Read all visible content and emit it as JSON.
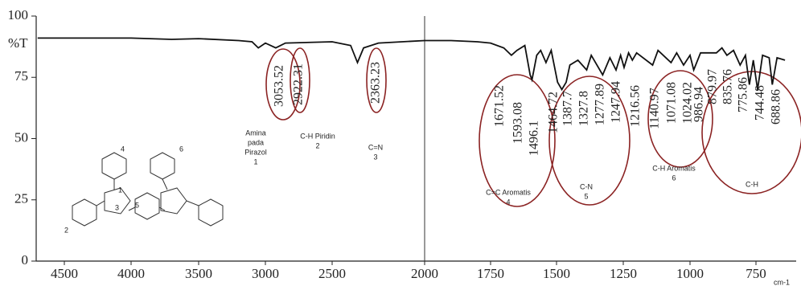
{
  "chart_data": {
    "type": "line",
    "y_label": "%T",
    "x_label": "cm-1",
    "color": "#111111",
    "xlim": [
      4700,
      620
    ],
    "ylim": [
      0,
      100
    ],
    "xticks": [
      4500,
      4000,
      3500,
      3000,
      2500,
      2000,
      1750,
      1500,
      1250,
      1000,
      750
    ],
    "yticks": [
      0,
      25,
      50,
      75,
      100
    ],
    "x": [
      4700,
      4500,
      4200,
      4000,
      3700,
      3500,
      3200,
      3100,
      3053,
      3000,
      2922,
      2850,
      2500,
      2400,
      2363,
      2330,
      2250,
      2000,
      1900,
      1800,
      1750,
      1700,
      1671,
      1650,
      1620,
      1600,
      1593,
      1575,
      1560,
      1540,
      1520,
      1496,
      1480,
      1464,
      1450,
      1420,
      1387,
      1370,
      1327,
      1300,
      1277,
      1260,
      1247,
      1230,
      1216,
      1200,
      1140,
      1120,
      1071,
      1050,
      1024,
      1000,
      986,
      960,
      900,
      879,
      860,
      835,
      810,
      790,
      775,
      760,
      744,
      725,
      700,
      688,
      670,
      640
    ],
    "values": [
      91,
      91,
      91,
      91,
      90.5,
      90.8,
      90,
      89.5,
      87,
      89,
      87,
      89,
      89.5,
      88,
      81,
      87,
      89,
      90,
      90,
      89.5,
      89,
      87,
      84,
      86,
      88,
      76,
      74,
      84,
      86,
      81,
      86,
      73,
      70,
      73,
      80,
      82,
      78,
      84,
      76,
      83,
      78,
      84,
      79,
      85,
      82,
      85,
      80,
      86,
      81,
      85,
      80,
      84,
      78,
      85,
      85,
      87,
      84,
      86,
      80,
      84,
      72,
      82,
      70,
      84,
      83,
      72,
      83,
      82
    ],
    "peak_labels": [
      3053.52,
      2922.31,
      2363.23,
      1671.52,
      1593.08,
      1496.1,
      1464.72,
      1387.7,
      1327.8,
      1277.89,
      1247.94,
      1216.56,
      1140.97,
      1071.08,
      1024.02,
      986.94,
      879.97,
      835.76,
      775.86,
      744.48,
      688.86
    ],
    "group_labels": [
      {
        "lines": [
          "Amina",
          "pada",
          "Pirazol",
          "1"
        ]
      },
      {
        "lines": [
          "C-H Piridin",
          "2"
        ]
      },
      {
        "lines": [
          "C=N",
          "3"
        ]
      },
      {
        "lines": [
          "C=C Aromatis",
          "4"
        ]
      },
      {
        "lines": [
          "C-N",
          "5"
        ]
      },
      {
        "lines": [
          "C-H Aromatis",
          "6"
        ]
      },
      {
        "lines": [
          "C-H"
        ]
      }
    ],
    "structure_labels": [
      "4",
      "1",
      "3",
      "5",
      "2",
      "6"
    ]
  }
}
